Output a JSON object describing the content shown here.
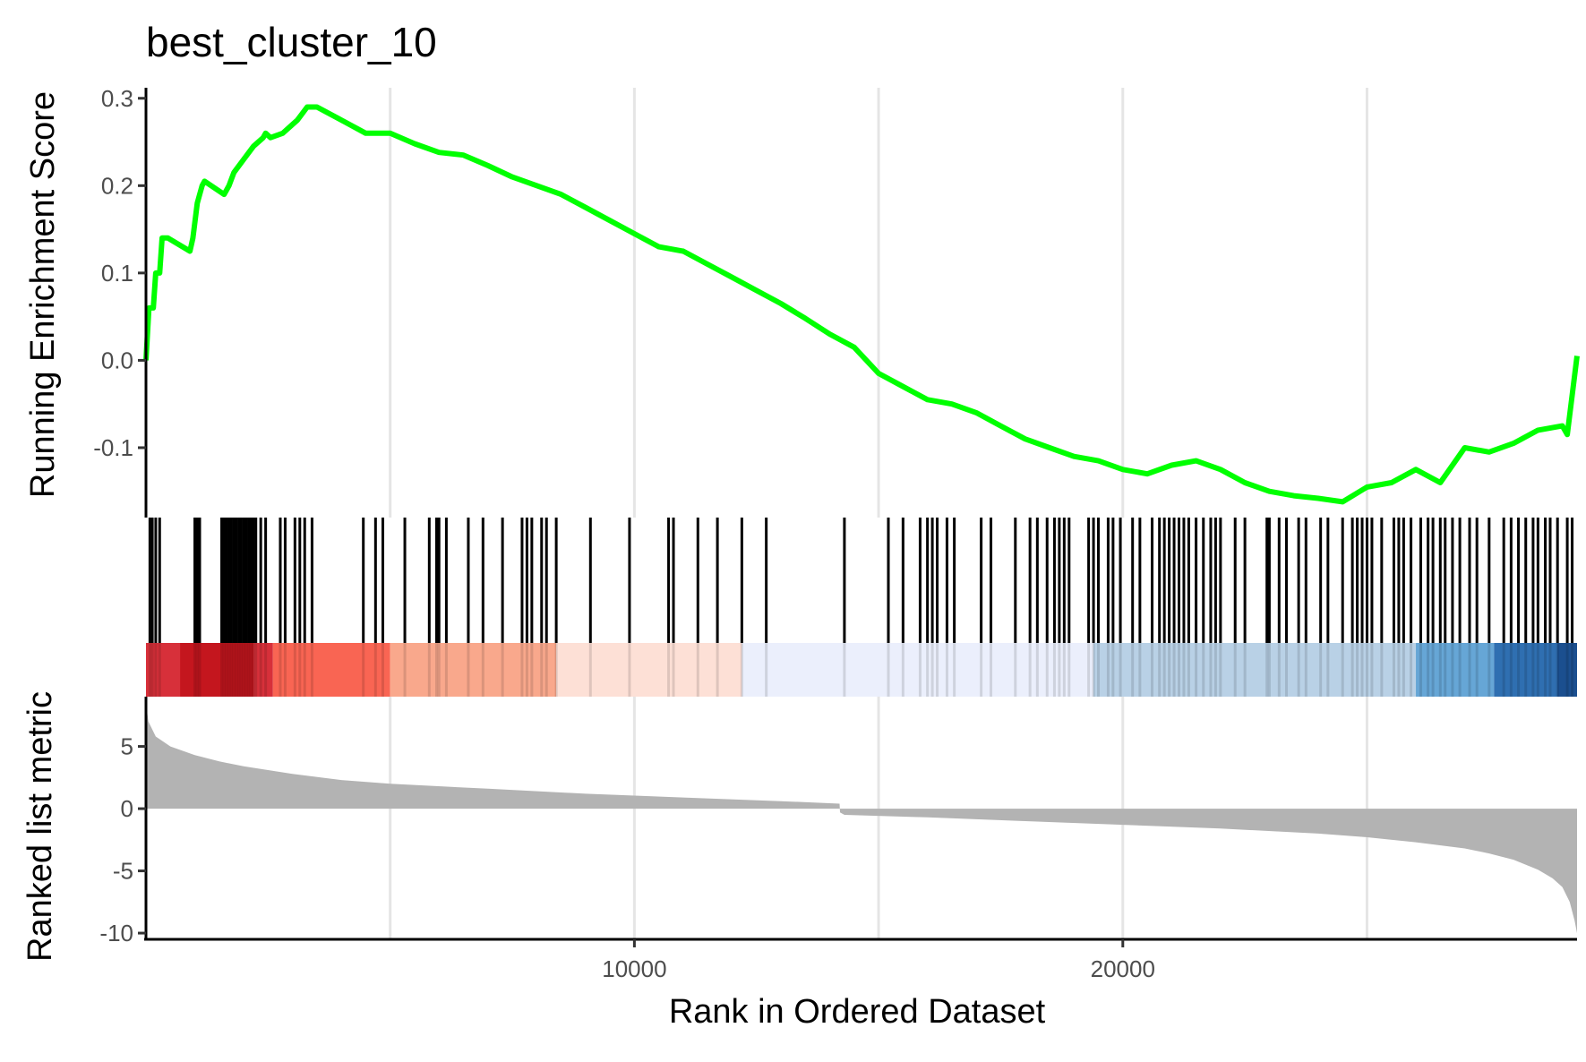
{
  "chart_data": {
    "type": "line",
    "title": "best_cluster_10",
    "xlabel": "Rank in Ordered Dataset",
    "xlim": [
      0,
      29300
    ],
    "x_ticks": [
      10000,
      20000
    ],
    "x_tick_labels": [
      "10000",
      "20000"
    ],
    "x_gridlines": [
      5000,
      10000,
      15000,
      20000,
      25000
    ],
    "panels": [
      {
        "id": "running-es",
        "type": "line",
        "ylabel": "Running Enrichment Score",
        "ylim": [
          -0.18,
          0.31
        ],
        "y_ticks": [
          0.3,
          0.2,
          0.1,
          0.0,
          -0.1
        ],
        "y_tick_labels": [
          "0.3",
          "0.2",
          "0.1",
          "0.0",
          "-0.1"
        ],
        "color": "#00ff00",
        "x": [
          0,
          60,
          150,
          200,
          280,
          330,
          450,
          900,
          960,
          1050,
          1150,
          1200,
          1600,
          1700,
          1800,
          2000,
          2200,
          2400,
          2450,
          2550,
          2800,
          3000,
          3100,
          3300,
          3500,
          4000,
          4500,
          5000,
          5500,
          6000,
          6500,
          7000,
          7500,
          8000,
          8500,
          9000,
          9500,
          10000,
          10500,
          11000,
          11500,
          12000,
          12500,
          13000,
          13500,
          14000,
          14500,
          15000,
          15500,
          16000,
          16500,
          17000,
          17500,
          18000,
          18500,
          19000,
          19500,
          20000,
          20500,
          21000,
          21500,
          22000,
          22500,
          23000,
          23500,
          24000,
          24500,
          25000,
          25500,
          26000,
          26500,
          27000,
          27500,
          28000,
          28500,
          29000,
          29100,
          29300
        ],
        "y": [
          0.0,
          0.06,
          0.06,
          0.1,
          0.1,
          0.14,
          0.14,
          0.125,
          0.14,
          0.18,
          0.2,
          0.205,
          0.19,
          0.2,
          0.215,
          0.23,
          0.245,
          0.255,
          0.26,
          0.255,
          0.26,
          0.27,
          0.275,
          0.29,
          0.29,
          0.275,
          0.26,
          0.26,
          0.248,
          0.238,
          0.235,
          0.223,
          0.21,
          0.2,
          0.19,
          0.175,
          0.16,
          0.145,
          0.13,
          0.125,
          0.11,
          0.095,
          0.08,
          0.065,
          0.048,
          0.03,
          0.015,
          -0.015,
          -0.03,
          -0.045,
          -0.05,
          -0.06,
          -0.075,
          -0.09,
          -0.1,
          -0.11,
          -0.115,
          -0.125,
          -0.13,
          -0.12,
          -0.115,
          -0.125,
          -0.14,
          -0.15,
          -0.155,
          -0.158,
          -0.162,
          -0.145,
          -0.14,
          -0.125,
          -0.14,
          -0.1,
          -0.105,
          -0.095,
          -0.08,
          -0.075,
          -0.085,
          0.005
        ]
      },
      {
        "id": "gene-hits",
        "type": "barcode",
        "x": [
          80,
          130,
          200,
          280,
          1000,
          1050,
          1100,
          1550,
          1600,
          1650,
          1700,
          1750,
          1800,
          1850,
          1900,
          1950,
          2000,
          2050,
          2100,
          2150,
          2200,
          2250,
          2350,
          2450,
          2750,
          2850,
          3050,
          3150,
          3250,
          3400,
          4450,
          4700,
          4850,
          5300,
          5800,
          5950,
          6000,
          6150,
          6600,
          6900,
          7300,
          7700,
          7800,
          7900,
          8100,
          8200,
          8400,
          9100,
          9900,
          10700,
          10800,
          11300,
          11700,
          12200,
          12700,
          14300,
          15200,
          15500,
          15850,
          16000,
          16100,
          16200,
          16400,
          16550,
          17100,
          17300,
          17800,
          18100,
          18250,
          18450,
          18600,
          18700,
          18800,
          18900,
          19300,
          19400,
          19500,
          19700,
          19800,
          19950,
          20200,
          20350,
          20600,
          20750,
          20850,
          20950,
          21050,
          21150,
          21250,
          21350,
          21500,
          21650,
          21800,
          21900,
          22000,
          22300,
          22500,
          22950,
          23000,
          23200,
          23350,
          23600,
          23750,
          24050,
          24200,
          24500,
          24700,
          24800,
          24900,
          25000,
          25100,
          25300,
          25550,
          25650,
          25750,
          25900,
          26100,
          26250,
          26350,
          26500,
          26600,
          26750,
          26900,
          27100,
          27250,
          27500,
          27800,
          27950,
          28100,
          28250,
          28400,
          28500,
          28650,
          28750,
          28900,
          29100,
          29200
        ],
        "color_bands": [
          {
            "from": 0,
            "to": 2600,
            "color": "#d7303a"
          },
          {
            "from": 700,
            "to": 2200,
            "color": "#c4161e"
          },
          {
            "from": 2600,
            "to": 5000,
            "color": "#f96553"
          },
          {
            "from": 5000,
            "to": 8400,
            "color": "#f9a88c"
          },
          {
            "from": 8400,
            "to": 12200,
            "color": "#fde0d6"
          },
          {
            "from": 12200,
            "to": 19400,
            "color": "#ebeffc"
          },
          {
            "from": 19400,
            "to": 26000,
            "color": "#b9d1e6"
          },
          {
            "from": 26000,
            "to": 27600,
            "color": "#66a6d6"
          },
          {
            "from": 27600,
            "to": 29300,
            "color": "#2f6fb1"
          },
          {
            "from": 28900,
            "to": 29300,
            "color": "#1b4f8f"
          }
        ]
      },
      {
        "id": "ranked-metric",
        "type": "area",
        "ylabel": "Ranked list metric",
        "ylim": [
          -10.5,
          9
        ],
        "y_ticks": [
          5,
          0,
          -5,
          -10
        ],
        "y_tick_labels": [
          "5",
          "0",
          "-5",
          "-10"
        ],
        "color": "#b3b3b3",
        "x": [
          0,
          50,
          200,
          500,
          1000,
          1500,
          2000,
          3000,
          4000,
          5000,
          7000,
          9000,
          11000,
          13000,
          14200,
          14210,
          14300,
          16000,
          18000,
          20000,
          22000,
          24000,
          25000,
          26000,
          27000,
          27500,
          28000,
          28500,
          28800,
          29000,
          29150,
          29250,
          29300
        ],
        "y": [
          8.5,
          7.0,
          5.8,
          5.0,
          4.3,
          3.8,
          3.4,
          2.8,
          2.3,
          2.0,
          1.6,
          1.2,
          0.9,
          0.6,
          0.4,
          -0.3,
          -0.5,
          -0.7,
          -1.0,
          -1.3,
          -1.6,
          -2.0,
          -2.3,
          -2.7,
          -3.2,
          -3.6,
          -4.1,
          -4.9,
          -5.6,
          -6.3,
          -7.5,
          -9.0,
          -10.0
        ]
      }
    ]
  }
}
